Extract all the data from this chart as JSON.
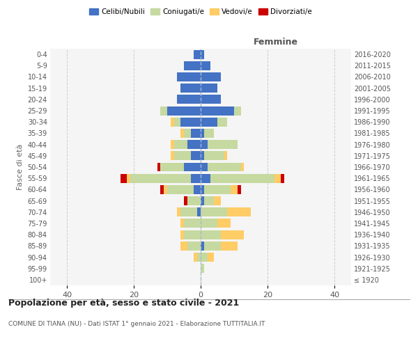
{
  "age_groups": [
    "100+",
    "95-99",
    "90-94",
    "85-89",
    "80-84",
    "75-79",
    "70-74",
    "65-69",
    "60-64",
    "55-59",
    "50-54",
    "45-49",
    "40-44",
    "35-39",
    "30-34",
    "25-29",
    "20-24",
    "15-19",
    "10-14",
    "5-9",
    "0-4"
  ],
  "birth_years": [
    "≤ 1920",
    "1921-1925",
    "1926-1930",
    "1931-1935",
    "1936-1940",
    "1941-1945",
    "1946-1950",
    "1951-1955",
    "1956-1960",
    "1961-1965",
    "1966-1970",
    "1971-1975",
    "1976-1980",
    "1981-1985",
    "1986-1990",
    "1991-1995",
    "1996-2000",
    "2001-2005",
    "2006-2010",
    "2011-2015",
    "2016-2020"
  ],
  "males": {
    "celibe": [
      0,
      0,
      0,
      0,
      0,
      0,
      1,
      0,
      2,
      3,
      5,
      3,
      4,
      3,
      6,
      10,
      7,
      6,
      7,
      5,
      2
    ],
    "coniugato": [
      0,
      0,
      1,
      4,
      5,
      5,
      5,
      4,
      8,
      18,
      7,
      5,
      4,
      2,
      2,
      2,
      0,
      0,
      0,
      0,
      0
    ],
    "vedovo": [
      0,
      0,
      1,
      2,
      1,
      1,
      1,
      0,
      1,
      1,
      0,
      1,
      1,
      1,
      1,
      0,
      0,
      0,
      0,
      0,
      0
    ],
    "divorziato": [
      0,
      0,
      0,
      0,
      0,
      0,
      0,
      1,
      1,
      2,
      1,
      0,
      0,
      0,
      0,
      0,
      0,
      0,
      0,
      0,
      0
    ]
  },
  "females": {
    "nubile": [
      0,
      0,
      0,
      1,
      0,
      0,
      0,
      1,
      1,
      3,
      2,
      1,
      2,
      1,
      5,
      10,
      6,
      5,
      6,
      3,
      1
    ],
    "coniugata": [
      0,
      1,
      2,
      5,
      6,
      5,
      8,
      3,
      8,
      19,
      10,
      6,
      9,
      3,
      3,
      2,
      0,
      0,
      0,
      0,
      0
    ],
    "vedova": [
      0,
      0,
      2,
      5,
      7,
      4,
      7,
      2,
      2,
      2,
      1,
      1,
      0,
      0,
      0,
      0,
      0,
      0,
      0,
      0,
      0
    ],
    "divorziata": [
      0,
      0,
      0,
      0,
      0,
      0,
      0,
      0,
      1,
      1,
      0,
      0,
      0,
      0,
      0,
      0,
      0,
      0,
      0,
      0,
      0
    ]
  },
  "colors": {
    "celibe": "#4472C4",
    "coniugato": "#C6D9A0",
    "vedovo": "#FFCC66",
    "divorziato": "#CC0000"
  },
  "xlim": 45,
  "title": "Popolazione per età, sesso e stato civile - 2021",
  "subtitle": "COMUNE DI TIANA (NU) - Dati ISTAT 1° gennaio 2021 - Elaborazione TUTTITALIA.IT",
  "ylabel_left": "Fasce di età",
  "xlabel_right": "Femmine",
  "legend_labels": [
    "Celibi/Nubili",
    "Coniugati/e",
    "Vedovi/e",
    "Divorziati/e"
  ],
  "bg_color": "#f5f5f5",
  "grid_color": "#cccccc"
}
